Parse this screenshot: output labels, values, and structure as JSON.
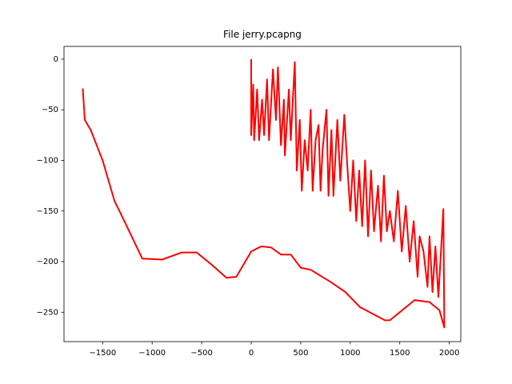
{
  "chart_data": {
    "type": "line",
    "title": "File jerry.pcapng",
    "x": [
      0,
      0,
      20,
      30,
      60,
      80,
      110,
      130,
      160,
      180,
      220,
      250,
      270,
      300,
      330,
      340,
      380,
      400,
      420,
      440,
      460,
      490,
      510,
      540,
      570,
      600,
      620,
      650,
      680,
      700,
      720,
      760,
      780,
      810,
      830,
      870,
      900,
      940,
      970,
      1000,
      1030,
      1060,
      1090,
      1120,
      1150,
      1180,
      1210,
      1240,
      1280,
      1310,
      1340,
      1370,
      1400,
      1440,
      1480,
      1520,
      1560,
      1600,
      1640,
      1680,
      1700,
      1740,
      1780,
      1800,
      1830,
      1860,
      1890,
      1910,
      1940,
      1950,
      1900,
      1800,
      1650,
      1500,
      1400,
      1350,
      1100,
      950,
      800,
      600,
      500,
      400,
      300,
      200,
      100,
      0,
      -150,
      -250,
      -400,
      -550,
      -700,
      -900,
      -1100,
      -1280,
      -1380,
      -1500,
      -1620,
      -1680,
      -1700
    ],
    "series": [
      {
        "color": "#ff0000",
        "values": [
          0,
          -75,
          -25,
          -80,
          -30,
          -80,
          -40,
          -75,
          -20,
          -80,
          -10,
          -60,
          -8,
          -85,
          -40,
          -95,
          -30,
          -80,
          -40,
          -3,
          -110,
          -60,
          -130,
          -80,
          -110,
          -50,
          -130,
          -80,
          -65,
          -130,
          -90,
          -50,
          -135,
          -70,
          -135,
          -60,
          -120,
          -55,
          -105,
          -150,
          -100,
          -160,
          -110,
          -165,
          -100,
          -175,
          -110,
          -170,
          -125,
          -180,
          -115,
          -170,
          -150,
          -180,
          -130,
          -190,
          -145,
          -200,
          -160,
          -215,
          -175,
          -190,
          -225,
          -175,
          -230,
          -185,
          -235,
          -200,
          -148,
          -265,
          -248,
          -240,
          -238,
          -250,
          -258,
          -258,
          -245,
          -230,
          -220,
          -208,
          -206,
          -193,
          -193,
          -186,
          -185,
          -190,
          -215,
          -216,
          -203,
          -191,
          -191,
          -198,
          -197,
          -160,
          -140,
          -100,
          -70,
          -60,
          -29
        ]
      }
    ],
    "xlim": [
      -1890,
      2116
    ],
    "ylim": [
      -279,
      12.6
    ],
    "xticks": [
      {
        "value": -1500,
        "label": "−1500"
      },
      {
        "value": -1000,
        "label": "−1000"
      },
      {
        "value": -500,
        "label": "−500"
      },
      0,
      500,
      1000,
      1500,
      2000
    ],
    "yticks": [
      0,
      {
        "value": -50,
        "label": "−50"
      },
      {
        "value": -100,
        "label": "−100"
      },
      {
        "value": -150,
        "label": "−150"
      },
      {
        "value": -200,
        "label": "−200"
      },
      {
        "value": -250,
        "label": "−250"
      }
    ]
  }
}
